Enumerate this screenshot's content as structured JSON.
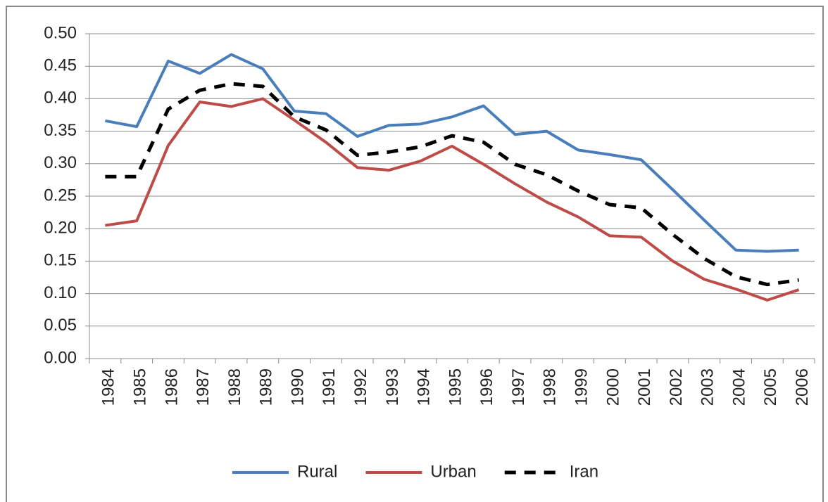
{
  "chart_data": {
    "type": "line",
    "categories": [
      "1984",
      "1985",
      "1986",
      "1987",
      "1988",
      "1989",
      "1990",
      "1991",
      "1992",
      "1993",
      "1994",
      "1995",
      "1996",
      "1997",
      "1998",
      "1999",
      "2000",
      "2001",
      "2002",
      "2003",
      "2004",
      "2005",
      "2006"
    ],
    "series": [
      {
        "name": "Rural",
        "color": "#4a7ebb",
        "dashed": false,
        "values": [
          0.366,
          0.357,
          0.458,
          0.439,
          0.468,
          0.446,
          0.381,
          0.377,
          0.342,
          0.359,
          0.361,
          0.372,
          0.389,
          0.345,
          0.35,
          0.321,
          0.314,
          0.306,
          0.26,
          0.213,
          0.167,
          0.165,
          0.167
        ]
      },
      {
        "name": "Urban",
        "color": "#be4b48",
        "dashed": false,
        "values": [
          0.205,
          0.212,
          0.328,
          0.395,
          0.388,
          0.4,
          0.367,
          0.333,
          0.294,
          0.29,
          0.304,
          0.327,
          0.299,
          0.269,
          0.241,
          0.218,
          0.189,
          0.187,
          0.15,
          0.122,
          0.107,
          0.09,
          0.106
        ]
      },
      {
        "name": "Iran",
        "color": "#000000",
        "dashed": true,
        "values": [
          0.28,
          0.28,
          0.384,
          0.413,
          0.423,
          0.419,
          0.372,
          0.352,
          0.313,
          0.318,
          0.326,
          0.343,
          0.333,
          0.299,
          0.283,
          0.258,
          0.237,
          0.232,
          0.191,
          0.154,
          0.126,
          0.114,
          0.121
        ]
      }
    ],
    "ylim": [
      0,
      0.5
    ],
    "yticks": [
      {
        "value": 0,
        "label": "0.00"
      },
      {
        "value": 0.05,
        "label": "0.05"
      },
      {
        "value": 0.1,
        "label": "0.10"
      },
      {
        "value": 0.15,
        "label": "0.15"
      },
      {
        "value": 0.2,
        "label": "0.20"
      },
      {
        "value": 0.25,
        "label": "0.25"
      },
      {
        "value": 0.3,
        "label": "0.30"
      },
      {
        "value": 0.35,
        "label": "0.35"
      },
      {
        "value": 0.4,
        "label": "0.40"
      },
      {
        "value": 0.45,
        "label": "0.45"
      },
      {
        "value": 0.5,
        "label": "0.50"
      }
    ],
    "grid": true,
    "legend": "bottom"
  }
}
